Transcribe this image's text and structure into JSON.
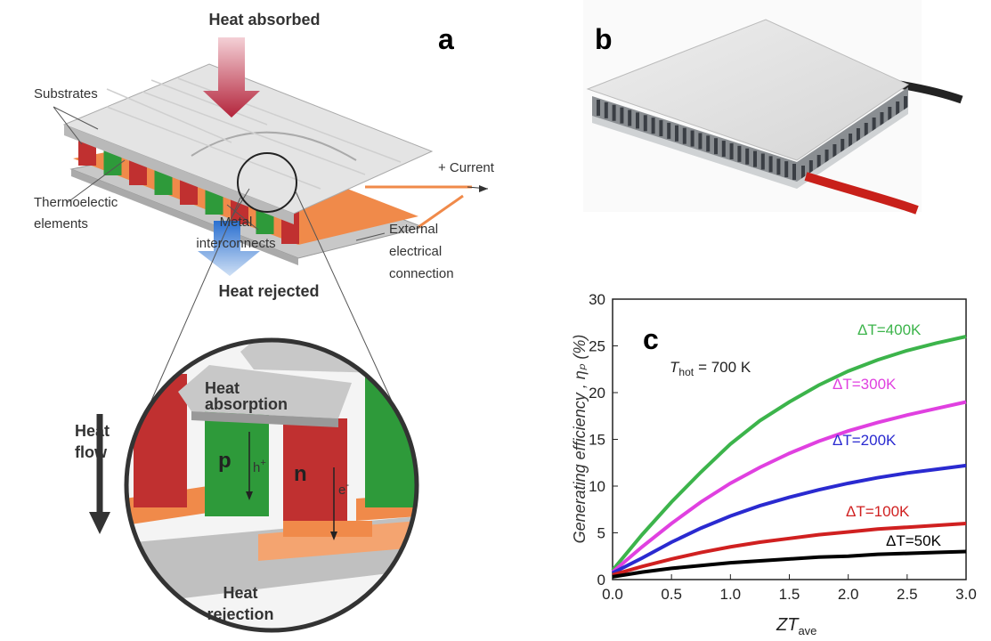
{
  "panel_labels": [
    "a",
    "b",
    "c"
  ],
  "diagram": {
    "heat_absorbed": "Heat absorbed",
    "substrates": "Substrates",
    "thermoelectric_elements": [
      "Thermoelectic",
      "elements"
    ],
    "metal_interconnects": [
      "Metal",
      "interconnects"
    ],
    "current": "+ Current",
    "external_connection": [
      "External",
      "electrical",
      "connection"
    ],
    "heat_rejected": "Heat rejected",
    "heat_absorption": [
      "Heat",
      "absorption"
    ],
    "p": "p",
    "hole": "h",
    "hole_sign": "+",
    "n": "n",
    "electron": "e",
    "electron_sign": "-",
    "heat_flow": [
      "Heat",
      "flow"
    ],
    "heat_rejection": [
      "Heat",
      "rejection"
    ]
  },
  "chart_data": {
    "type": "line",
    "ylabel": "Generating efficiency , ηₚ (%)",
    "xlabel": "ZT",
    "xlabel_sub": "ave",
    "annotation": {
      "main": "T",
      "sub": "hot",
      "rest": "= 700 K"
    },
    "x": [
      0,
      0.25,
      0.5,
      0.75,
      1.0,
      1.25,
      1.5,
      1.75,
      2.0,
      2.25,
      2.5,
      2.75,
      3.0
    ],
    "series": [
      {
        "name": "ΔT=400K",
        "color": "#3cb44b",
        "values": [
          1,
          4.8,
          8.3,
          11.5,
          14.5,
          17,
          19,
          20.8,
          22.3,
          23.5,
          24.5,
          25.3,
          26
        ]
      },
      {
        "name": "ΔT=300K",
        "color": "#e040e0",
        "values": [
          0.8,
          3.5,
          6,
          8.3,
          10.3,
          12,
          13.5,
          14.8,
          15.9,
          16.8,
          17.6,
          18.3,
          19
        ]
      },
      {
        "name": "ΔT=200K",
        "color": "#2a2ad0",
        "values": [
          0.7,
          2.3,
          4,
          5.5,
          6.8,
          7.9,
          8.8,
          9.6,
          10.3,
          10.9,
          11.4,
          11.8,
          12.2
        ]
      },
      {
        "name": "ΔT=100K",
        "color": "#d02020",
        "values": [
          0.5,
          1.4,
          2.2,
          2.9,
          3.5,
          4,
          4.4,
          4.8,
          5.1,
          5.4,
          5.6,
          5.8,
          6
        ]
      },
      {
        "name": "ΔT=50K",
        "color": "#000000",
        "values": [
          0.3,
          0.8,
          1.2,
          1.5,
          1.8,
          2,
          2.2,
          2.4,
          2.5,
          2.7,
          2.8,
          2.9,
          3
        ]
      }
    ],
    "xlim": [
      0,
      3.0
    ],
    "xticks": [
      {
        "value": 0,
        "label": "0.0"
      },
      0.5,
      {
        "value": 1,
        "label": "1.0"
      },
      1.5,
      {
        "value": 2,
        "label": "2.0"
      },
      2.5,
      {
        "value": 3,
        "label": "3.0"
      }
    ],
    "ylim": [
      0,
      30
    ],
    "yticks": [
      0,
      5,
      10,
      15,
      20,
      25,
      30
    ]
  }
}
